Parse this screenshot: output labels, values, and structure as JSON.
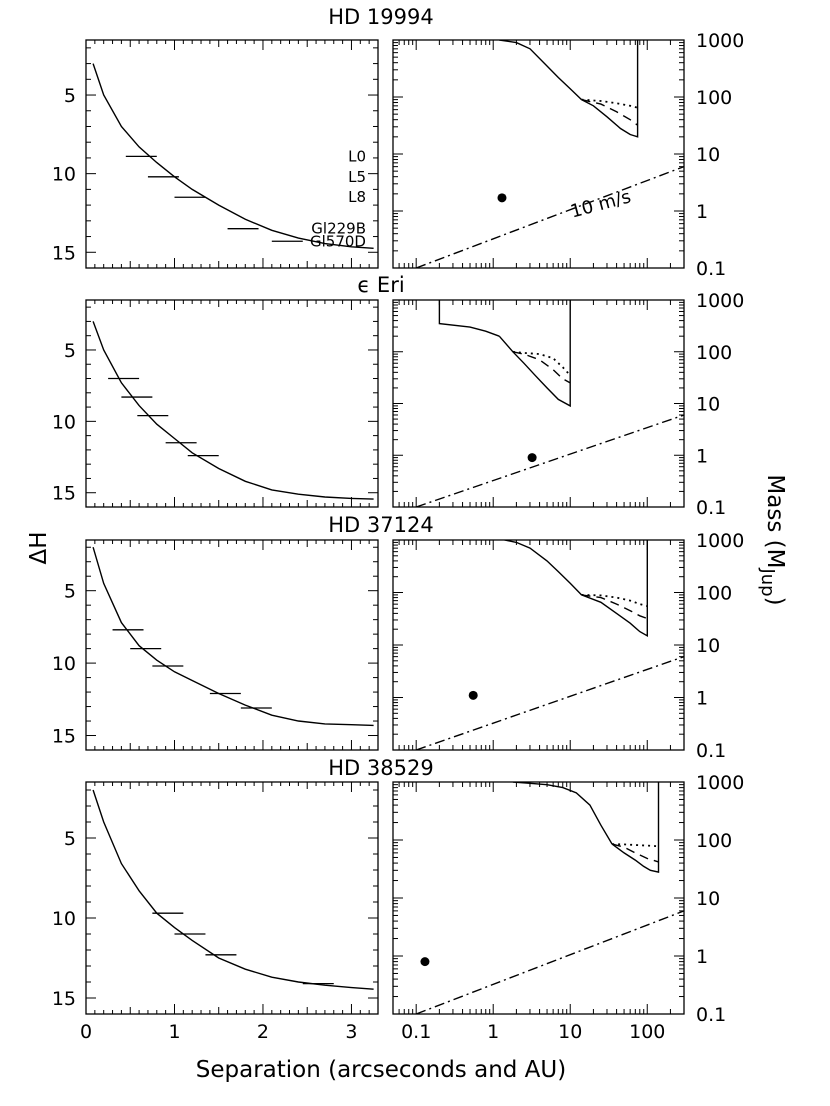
{
  "figure": {
    "xlabel": "Separation (arcseconds and AU)",
    "ylabel_left": "ΔH",
    "ylabel_right_main": "Mass (M",
    "ylabel_right_sub": "Jup",
    "ylabel_right_close": ")"
  },
  "chart_data": [
    {
      "type": "line",
      "panel": "left",
      "title": "HD 19994",
      "x": [
        0.08,
        0.2,
        0.4,
        0.6,
        0.8,
        1.0,
        1.2,
        1.5,
        1.8,
        2.1,
        2.4,
        2.7,
        3.0,
        3.25
      ],
      "y": [
        3.0,
        5.0,
        7.0,
        8.3,
        9.3,
        10.2,
        11.0,
        12.0,
        12.9,
        13.6,
        14.1,
        14.45,
        14.65,
        14.75
      ],
      "xlim": [
        0,
        3.3
      ],
      "ylim": [
        16,
        1.5
      ],
      "xticks": [
        "0",
        "1",
        "2",
        "3"
      ],
      "yticks": [
        "5",
        "10",
        "15"
      ],
      "markers": [
        {
          "label": "L0",
          "x": [
            0.45,
            0.8
          ],
          "y": 8.9
        },
        {
          "label": "L5",
          "x": [
            0.7,
            1.05
          ],
          "y": 10.2
        },
        {
          "label": "L8",
          "x": [
            1.0,
            1.35
          ],
          "y": 11.5
        },
        {
          "label": "Gl229B",
          "x": [
            1.6,
            1.95
          ],
          "y": 13.5
        },
        {
          "label": "Gl570D",
          "x": [
            2.1,
            2.45
          ],
          "y": 14.3
        }
      ]
    },
    {
      "type": "line",
      "panel": "right",
      "title": "",
      "xlim": [
        0.05,
        300
      ],
      "ylim": [
        0.1,
        1000
      ],
      "xscale": "log",
      "yscale": "log",
      "xticks": [
        "0.1",
        "1",
        "10",
        "100"
      ],
      "yticks": [
        "0.1",
        "1",
        "10",
        "100",
        "1000"
      ],
      "series": [
        {
          "style": "solid",
          "x": [
            1.2,
            2,
            3,
            5,
            7,
            10,
            14
          ],
          "y": [
            1000,
            900,
            700,
            350,
            220,
            140,
            90
          ]
        },
        {
          "style": "solid",
          "x": [
            14,
            20,
            30,
            45,
            60,
            75,
            75
          ],
          "y": [
            90,
            70,
            45,
            28,
            22,
            20,
            1000
          ]
        },
        {
          "style": "dotted",
          "x": [
            14,
            25,
            40,
            60,
            75
          ],
          "y": [
            90,
            85,
            78,
            70,
            65
          ]
        },
        {
          "style": "dashed",
          "x": [
            14,
            25,
            40,
            60,
            75
          ],
          "y": [
            90,
            75,
            55,
            40,
            32
          ]
        },
        {
          "style": "dashdot",
          "x": [
            0.1,
            300
          ],
          "y": [
            0.1,
            6
          ]
        }
      ],
      "points": [
        {
          "x": 1.3,
          "y": 1.7
        }
      ],
      "annotation": "10 m/s"
    },
    {
      "type": "line",
      "panel": "left",
      "title": "ϵ Eri",
      "x": [
        0.08,
        0.2,
        0.4,
        0.6,
        0.8,
        1.0,
        1.2,
        1.5,
        1.8,
        2.1,
        2.4,
        2.7,
        3.0,
        3.25
      ],
      "y": [
        3.0,
        5.0,
        7.3,
        8.9,
        10.2,
        11.2,
        12.2,
        13.3,
        14.2,
        14.8,
        15.1,
        15.3,
        15.4,
        15.45
      ],
      "xlim": [
        0,
        3.3
      ],
      "ylim": [
        16,
        1.5
      ],
      "xticks": [
        "0",
        "1",
        "2",
        "3"
      ],
      "yticks": [
        "5",
        "10",
        "15"
      ],
      "markers": [
        {
          "label": "",
          "x": [
            0.25,
            0.6
          ],
          "y": 7.0
        },
        {
          "label": "",
          "x": [
            0.4,
            0.75
          ],
          "y": 8.3
        },
        {
          "label": "",
          "x": [
            0.58,
            0.93
          ],
          "y": 9.6
        },
        {
          "label": "",
          "x": [
            0.9,
            1.25
          ],
          "y": 11.5
        },
        {
          "label": "",
          "x": [
            1.15,
            1.5
          ],
          "y": 12.4
        }
      ]
    },
    {
      "type": "line",
      "panel": "right",
      "title": "",
      "xlim": [
        0.05,
        300
      ],
      "ylim": [
        0.1,
        1000
      ],
      "xscale": "log",
      "yscale": "log",
      "xticks": [
        "0.1",
        "1",
        "10",
        "100"
      ],
      "yticks": [
        "0.1",
        "1",
        "10",
        "100",
        "1000"
      ],
      "series": [
        {
          "style": "solid",
          "x": [
            0.2,
            0.2,
            0.5,
            0.8,
            1.2
          ],
          "y": [
            1000,
            350,
            300,
            250,
            200
          ]
        },
        {
          "style": "solid",
          "x": [
            1.2,
            1.8,
            2.5,
            3.5,
            5,
            7,
            10,
            10
          ],
          "y": [
            200,
            100,
            60,
            35,
            20,
            12,
            9,
            1000
          ]
        },
        {
          "style": "dotted",
          "x": [
            1.8,
            2.5,
            4,
            6,
            8,
            10
          ],
          "y": [
            100,
            95,
            90,
            75,
            50,
            35
          ]
        },
        {
          "style": "dashed",
          "x": [
            1.8,
            2.5,
            4,
            6,
            8,
            10
          ],
          "y": [
            100,
            90,
            70,
            45,
            30,
            25
          ]
        },
        {
          "style": "dashdot",
          "x": [
            0.1,
            300
          ],
          "y": [
            0.1,
            6
          ]
        }
      ],
      "points": [
        {
          "x": 3.2,
          "y": 0.9
        }
      ]
    },
    {
      "type": "line",
      "panel": "left",
      "title": "HD 37124",
      "x": [
        0.08,
        0.2,
        0.4,
        0.6,
        0.8,
        1.0,
        1.2,
        1.5,
        1.8,
        2.1,
        2.4,
        2.7,
        3.0,
        3.25
      ],
      "y": [
        2.0,
        4.5,
        7.2,
        8.8,
        9.8,
        10.6,
        11.2,
        12.1,
        12.9,
        13.6,
        14.0,
        14.2,
        14.25,
        14.3
      ],
      "xlim": [
        0,
        3.3
      ],
      "ylim": [
        16,
        1.5
      ],
      "xticks": [
        "0",
        "1",
        "2",
        "3"
      ],
      "yticks": [
        "5",
        "10",
        "15"
      ],
      "markers": [
        {
          "label": "",
          "x": [
            0.3,
            0.65
          ],
          "y": 7.7
        },
        {
          "label": "",
          "x": [
            0.5,
            0.85
          ],
          "y": 9.0
        },
        {
          "label": "",
          "x": [
            0.75,
            1.1
          ],
          "y": 10.2
        },
        {
          "label": "",
          "x": [
            1.4,
            1.75
          ],
          "y": 12.1
        },
        {
          "label": "",
          "x": [
            1.75,
            2.1
          ],
          "y": 13.1
        }
      ]
    },
    {
      "type": "line",
      "panel": "right",
      "title": "",
      "xlim": [
        0.05,
        300
      ],
      "ylim": [
        0.1,
        1000
      ],
      "xscale": "log",
      "yscale": "log",
      "xticks": [
        "0.1",
        "1",
        "10",
        "100"
      ],
      "yticks": [
        "0.1",
        "1",
        "10",
        "100",
        "1000"
      ],
      "series": [
        {
          "style": "solid",
          "x": [
            1.4,
            2,
            3,
            5,
            7,
            10,
            14
          ],
          "y": [
            1000,
            900,
            700,
            400,
            250,
            150,
            90
          ]
        },
        {
          "style": "solid",
          "x": [
            14,
            25,
            40,
            60,
            80,
            100,
            100
          ],
          "y": [
            90,
            65,
            40,
            26,
            18,
            15,
            1000
          ]
        },
        {
          "style": "dotted",
          "x": [
            14,
            25,
            40,
            60,
            80,
            100
          ],
          "y": [
            90,
            88,
            80,
            70,
            60,
            55
          ]
        },
        {
          "style": "dashed",
          "x": [
            14,
            25,
            40,
            60,
            80,
            100
          ],
          "y": [
            90,
            80,
            60,
            45,
            36,
            32
          ]
        },
        {
          "style": "dashdot",
          "x": [
            0.1,
            300
          ],
          "y": [
            0.1,
            6
          ]
        }
      ],
      "points": [
        {
          "x": 0.55,
          "y": 1.1
        }
      ]
    },
    {
      "type": "line",
      "panel": "left",
      "title": "HD 38529",
      "x": [
        0.08,
        0.2,
        0.4,
        0.6,
        0.8,
        1.0,
        1.2,
        1.5,
        1.8,
        2.1,
        2.4,
        2.7,
        3.0,
        3.25
      ],
      "y": [
        2.0,
        4.0,
        6.6,
        8.3,
        9.7,
        10.6,
        11.4,
        12.5,
        13.2,
        13.7,
        14.0,
        14.2,
        14.35,
        14.45
      ],
      "xlim": [
        0,
        3.3
      ],
      "ylim": [
        16,
        1.5
      ],
      "xticks": [
        "0",
        "1",
        "2",
        "3"
      ],
      "yticks": [
        "5",
        "10",
        "15"
      ],
      "markers": [
        {
          "label": "",
          "x": [
            0.75,
            1.1
          ],
          "y": 9.7
        },
        {
          "label": "",
          "x": [
            1.0,
            1.35
          ],
          "y": 11.0
        },
        {
          "label": "",
          "x": [
            1.35,
            1.7
          ],
          "y": 12.3
        },
        {
          "label": "",
          "x": [
            2.45,
            2.8
          ],
          "y": 14.1
        }
      ]
    },
    {
      "type": "line",
      "panel": "right",
      "title": "",
      "xlim": [
        0.05,
        300
      ],
      "ylim": [
        0.1,
        1000
      ],
      "xscale": "log",
      "yscale": "log",
      "xticks": [
        "0.1",
        "1",
        "10",
        "100"
      ],
      "yticks": [
        "0.1",
        "1",
        "10",
        "100",
        "1000"
      ],
      "series": [
        {
          "style": "solid",
          "x": [
            1.8,
            3,
            5,
            8,
            12,
            18,
            25,
            35
          ],
          "y": [
            1000,
            950,
            900,
            800,
            650,
            400,
            180,
            85
          ]
        },
        {
          "style": "solid",
          "x": [
            35,
            50,
            70,
            90,
            110,
            140,
            140
          ],
          "y": [
            85,
            60,
            45,
            35,
            30,
            28,
            1000
          ]
        },
        {
          "style": "dotted",
          "x": [
            35,
            50,
            70,
            100,
            140
          ],
          "y": [
            85,
            84,
            82,
            80,
            78
          ]
        },
        {
          "style": "dashed",
          "x": [
            35,
            50,
            70,
            100,
            140
          ],
          "y": [
            85,
            75,
            60,
            48,
            42
          ]
        },
        {
          "style": "dashdot",
          "x": [
            0.1,
            300
          ],
          "y": [
            0.1,
            6
          ]
        }
      ],
      "points": [
        {
          "x": 0.13,
          "y": 0.8
        }
      ]
    }
  ]
}
